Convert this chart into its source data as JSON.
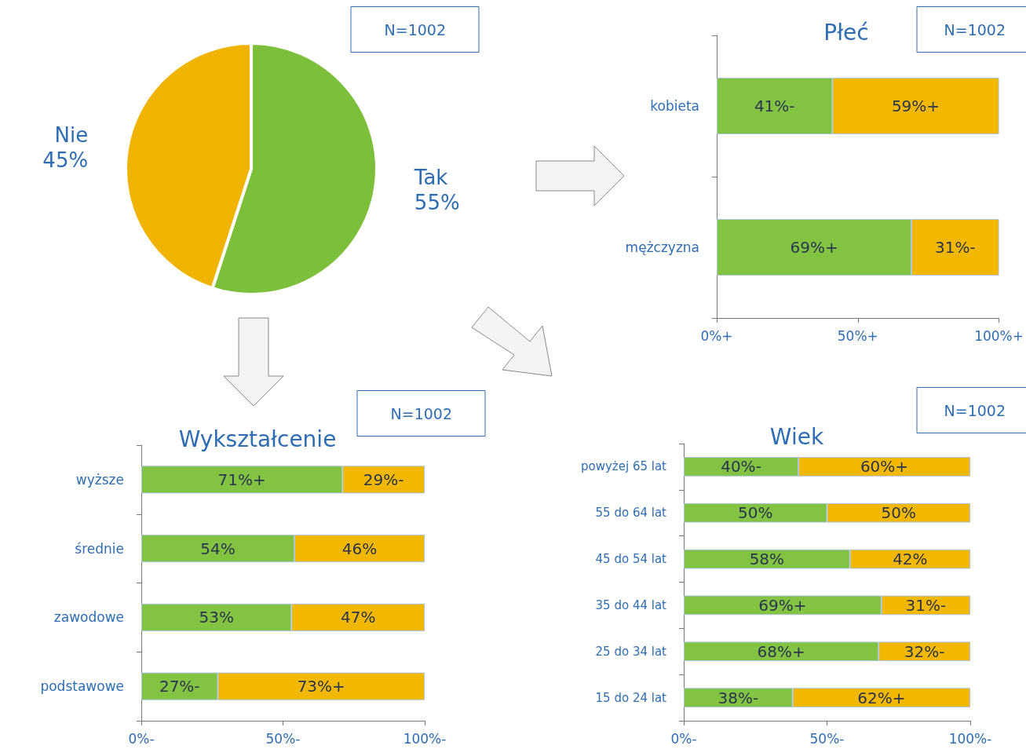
{
  "chart_data": [
    {
      "type": "pie",
      "categories": [
        "Tak",
        "Nie"
      ],
      "values": [
        55,
        45
      ],
      "colors": [
        "#7cbf3a",
        "#f0b400"
      ],
      "value_labels": [
        "55%",
        "45%"
      ],
      "annotations": [
        "N=1002"
      ],
      "legend": false
    },
    {
      "type": "bar",
      "title": "Płeć",
      "orientation": "horizontal",
      "stacked": true,
      "categories": [
        "kobieta",
        "mężczyzna"
      ],
      "series": [
        {
          "color": "#82c441",
          "values": [
            41,
            69
          ],
          "value_labels": [
            "41%-",
            "69%+"
          ]
        },
        {
          "color": "#f2b700",
          "values": [
            59,
            31
          ],
          "value_labels": [
            "59%+",
            "31%-"
          ]
        }
      ],
      "xlim": [
        0,
        100
      ],
      "xticks": [
        {
          "value": 0,
          "label": "0%+"
        },
        {
          "value": 50,
          "label": "50%+"
        },
        {
          "value": 100,
          "label": "100%+"
        }
      ],
      "annotations": [
        "N=1002"
      ],
      "grid": false,
      "legend": false
    },
    {
      "type": "bar",
      "title": "Wykształcenie",
      "orientation": "horizontal",
      "stacked": true,
      "categories": [
        "wyższe",
        "średnie",
        "zawodowe",
        "podstawowe"
      ],
      "series": [
        {
          "color": "#82c441",
          "values": [
            71,
            54,
            53,
            27
          ],
          "value_labels": [
            "71%+",
            "54%",
            "53%",
            "27%-"
          ]
        },
        {
          "color": "#f2b700",
          "values": [
            29,
            46,
            47,
            73
          ],
          "value_labels": [
            "29%-",
            "46%",
            "47%",
            "73%+"
          ]
        }
      ],
      "xlim": [
        0,
        100
      ],
      "xticks": [
        {
          "value": 0,
          "label": "0%-"
        },
        {
          "value": 50,
          "label": "50%-"
        },
        {
          "value": 100,
          "label": "100%-"
        }
      ],
      "annotations": [
        "N=1002"
      ],
      "grid": false,
      "legend": false
    },
    {
      "type": "bar",
      "title": "Wiek",
      "orientation": "horizontal",
      "stacked": true,
      "categories": [
        "powyżej 65 lat",
        "55 do 64 lat",
        "45 do 54 lat",
        "35 do 44 lat",
        "25 do 34 lat",
        "15 do 24 lat"
      ],
      "series": [
        {
          "color": "#82c441",
          "values": [
            40,
            50,
            58,
            69,
            68,
            38
          ],
          "value_labels": [
            "40%-",
            "50%",
            "58%",
            "69%+",
            "68%+",
            "38%-"
          ]
        },
        {
          "color": "#f2b700",
          "values": [
            60,
            50,
            42,
            31,
            32,
            62
          ],
          "value_labels": [
            "60%+",
            "50%",
            "42%",
            "31%-",
            "32%-",
            "62%+"
          ]
        }
      ],
      "xlim": [
        0,
        100
      ],
      "xticks": [
        {
          "value": 0,
          "label": "0%-"
        },
        {
          "value": 50,
          "label": "50%-"
        },
        {
          "value": 100,
          "label": "100%-"
        }
      ],
      "annotations": [
        "N=1002"
      ],
      "grid": false,
      "legend": false
    }
  ]
}
